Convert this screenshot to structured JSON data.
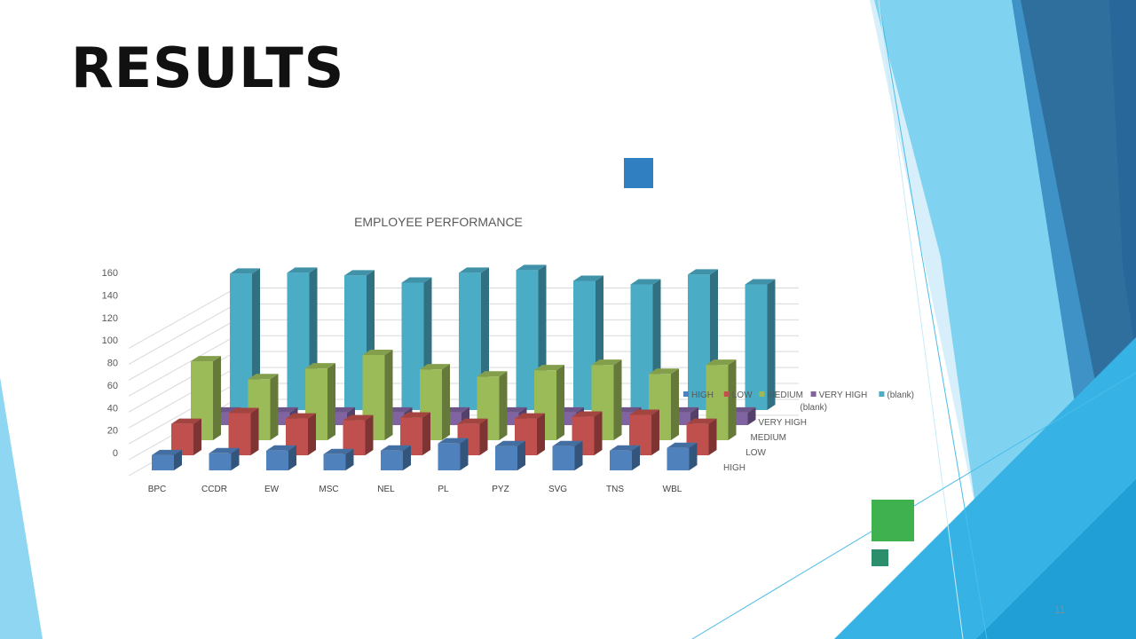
{
  "slide": {
    "title": "RESULTS",
    "page_number": "11"
  },
  "colors": {
    "sky_light": "#8ed6f1",
    "sky_mid": "#4cbce8",
    "blue_dark": "#2e6f9e",
    "blue_deep": "#28679a",
    "accent_blue_square": "#2f7fc1",
    "accent_green_square": "#3fb24f",
    "accent_teal_square": "#2a8f6a"
  },
  "chart_data": {
    "type": "bar",
    "title": "EMPLOYEE PERFORMANCE",
    "categories": [
      "BPC",
      "CCDR",
      "EW",
      "MSC",
      "NEL",
      "PL",
      "PYZ",
      "SVG",
      "TNS",
      "WBL"
    ],
    "depth_labels": [
      "HIGH",
      "LOW",
      "MEDIUM",
      "VERY HIGH",
      "(blank)"
    ],
    "yticks": [
      0,
      20,
      40,
      60,
      80,
      100,
      120,
      140,
      160
    ],
    "ylim": [
      0,
      160
    ],
    "grid": true,
    "legend_position": "right",
    "series": [
      {
        "name": "HIGH",
        "color": "#4f81bd",
        "values": [
          17,
          19,
          22,
          18,
          22,
          30,
          27,
          27,
          22,
          25
        ]
      },
      {
        "name": "LOW",
        "color": "#c0504d",
        "values": [
          35,
          47,
          41,
          39,
          42,
          35,
          41,
          43,
          45,
          35
        ]
      },
      {
        "name": "MEDIUM",
        "color": "#9bbb59",
        "values": [
          88,
          68,
          80,
          95,
          79,
          71,
          78,
          84,
          74,
          84
        ]
      },
      {
        "name": "VERY HIGH",
        "color": "#8064a2",
        "values": [
          14,
          14,
          14,
          14,
          14,
          14,
          14,
          14,
          14,
          14
        ]
      },
      {
        "name": "(blank)",
        "color": "#4bacc6",
        "values": [
          152,
          153,
          150,
          142,
          153,
          156,
          144,
          140,
          151,
          140
        ]
      }
    ]
  }
}
